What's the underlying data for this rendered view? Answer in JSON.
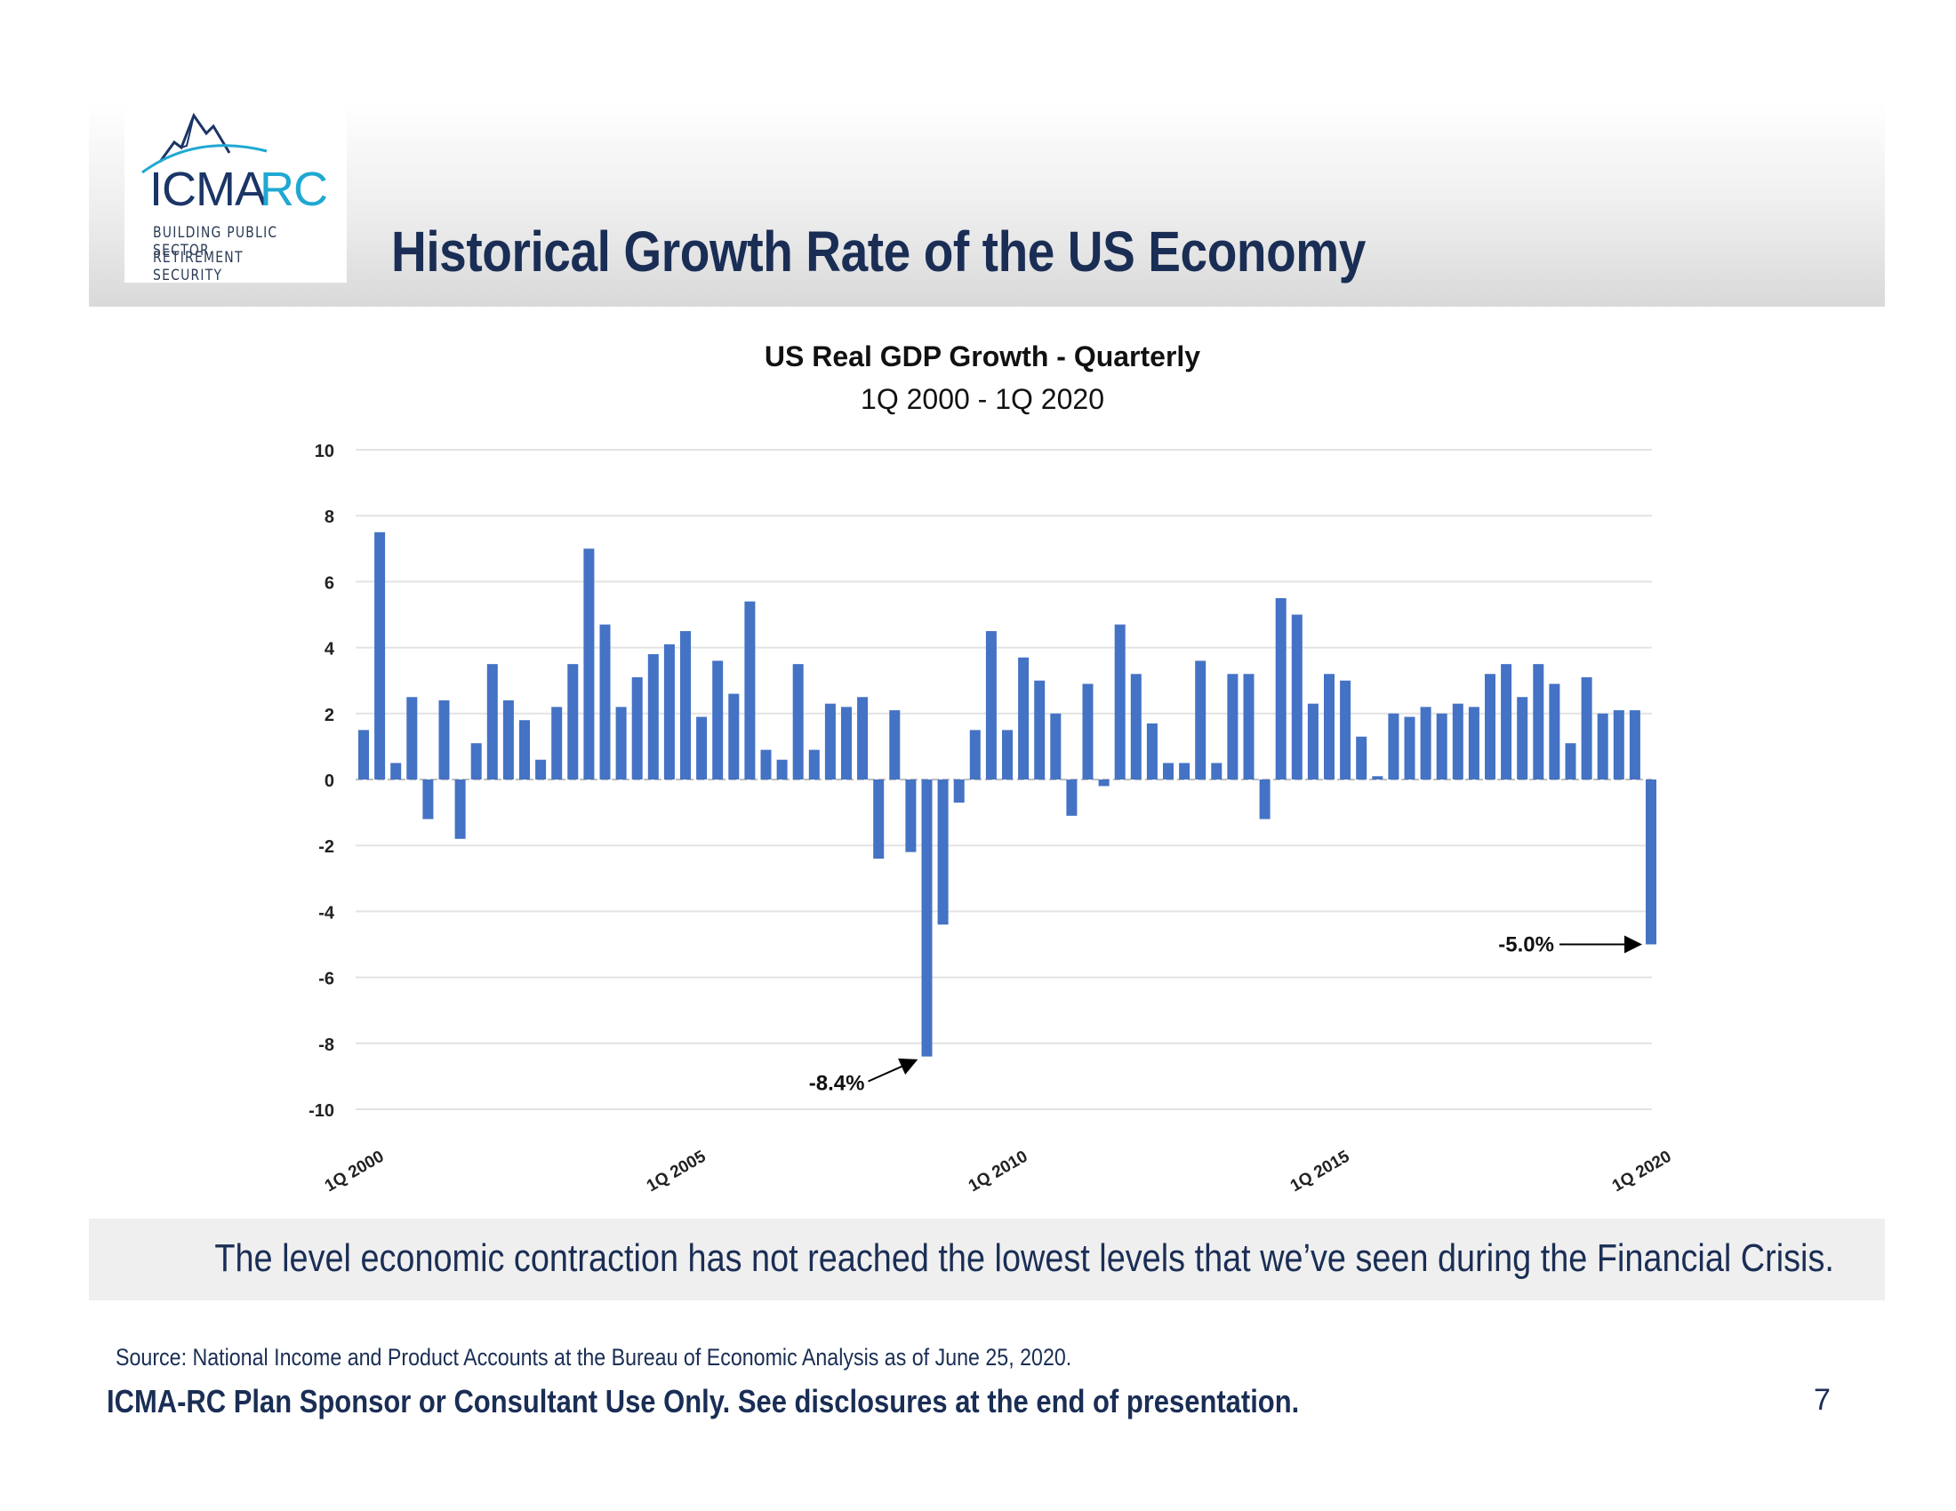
{
  "header": {
    "title": "Historical Growth Rate of the US Economy",
    "logo": {
      "word_left": "ICMA",
      "word_right": "RC",
      "tagline_line1": "BUILDING PUBLIC SECTOR",
      "tagline_line2": "RETIREMENT SECURITY",
      "icon": "mountain-peaks-icon"
    }
  },
  "chart_data": {
    "type": "bar",
    "title": "US Real GDP Growth - Quarterly",
    "subtitle": "1Q 2000 - 1Q 2020",
    "xlabel": "",
    "ylabel": "",
    "ylim": [
      -10,
      10
    ],
    "yticks": [
      10,
      8,
      6,
      4,
      2,
      0,
      -2,
      -4,
      -6,
      -8,
      -10
    ],
    "grid": true,
    "legend": "none",
    "bar_color": "#4472c4",
    "x_tick_labels": [
      {
        "label": "1Q 2000",
        "index": 0
      },
      {
        "label": "1Q 2005",
        "index": 20
      },
      {
        "label": "1Q 2010",
        "index": 40
      },
      {
        "label": "1Q 2015",
        "index": 60
      },
      {
        "label": "1Q 2020",
        "index": 80
      }
    ],
    "values": [
      1.5,
      7.5,
      0.5,
      2.5,
      -1.2,
      2.4,
      -1.8,
      1.1,
      3.5,
      2.4,
      1.8,
      0.6,
      2.2,
      3.5,
      7.0,
      4.7,
      2.2,
      3.1,
      3.8,
      4.1,
      4.5,
      1.9,
      3.6,
      2.6,
      5.4,
      0.9,
      0.6,
      3.5,
      0.9,
      2.3,
      2.2,
      2.5,
      -2.4,
      2.1,
      -2.2,
      -8.4,
      -4.4,
      -0.7,
      1.5,
      4.5,
      1.5,
      3.7,
      3.0,
      2.0,
      -1.1,
      2.9,
      -0.2,
      4.7,
      3.2,
      1.7,
      0.5,
      0.5,
      3.6,
      0.5,
      3.2,
      3.2,
      -1.2,
      5.5,
      5.0,
      2.3,
      3.2,
      3.0,
      1.3,
      0.1,
      2.0,
      1.9,
      2.2,
      2.0,
      2.3,
      2.2,
      3.2,
      3.5,
      2.5,
      3.5,
      2.9,
      1.1,
      3.1,
      2.0,
      2.1,
      2.1,
      -5.0
    ],
    "annotations": [
      {
        "text": "-8.4%",
        "index": 35,
        "value": -8.4
      },
      {
        "text": "-5.0%",
        "index": 80,
        "value": -5.0
      }
    ]
  },
  "takeaway": "The level economic contraction has not reached the lowest levels that we’ve seen during the Financial Crisis.",
  "footer": {
    "source": "Source:  National Income and Product Accounts at the Bureau of Economic Analysis as of June 25, 2020.",
    "disclaimer": "ICMA-RC Plan Sponsor or Consultant Use Only.  See disclosures at the end of presentation.",
    "page_number": "7"
  }
}
